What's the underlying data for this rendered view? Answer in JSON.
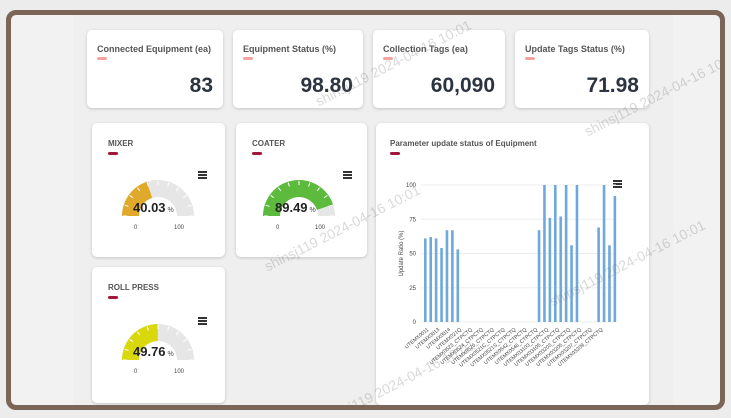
{
  "kpis": [
    {
      "title": "Connected Equipment (ea)",
      "value": "83"
    },
    {
      "title": "Equipment Status (%)",
      "value": "98.80"
    },
    {
      "title": "Collection Tags (ea)",
      "value": "60,090"
    },
    {
      "title": "Update Tags Status (%)",
      "value": "71.98"
    }
  ],
  "gauges": [
    {
      "title": "MIXER",
      "value": 40.03,
      "value_text": "40.03",
      "unit": "%",
      "min": "0",
      "max": "100",
      "color": "#e0a92a"
    },
    {
      "title": "COATER",
      "value": 89.49,
      "value_text": "89.49",
      "unit": "%",
      "min": "0",
      "max": "100",
      "color": "#5cba3c"
    },
    {
      "title": "ROLL PRESS",
      "value": 49.76,
      "value_text": "49.76",
      "unit": "%",
      "min": "0",
      "max": "100",
      "color": "#d8d80c"
    }
  ],
  "watermark": "shinsj119 2024-04-16 10:01",
  "icons": {
    "menu": "hamburger-menu-icon"
  },
  "colors": {
    "track": "#e6e6e6",
    "bar": "#6fa8dc",
    "accent": "#a3153a",
    "kpi_accent": "#f4a5a0"
  },
  "chart_data": {
    "type": "bar",
    "title": "Parameter update status of Equipment",
    "ylabel": "Update Ratio (%)",
    "xlabel": "",
    "ylim": [
      0,
      100
    ],
    "yticks": [
      "0",
      "25",
      "50",
      "75",
      "100"
    ],
    "grid": true,
    "legend": "none",
    "visible_xlabels": [
      "UTEMX0011",
      "UTEMX0013",
      "UTEMX0014",
      "UTEMX021Q",
      "UTEMX0523_CTPCTQ",
      "UTEMX0524_CTPCTQ",
      "UTEMX0526_CTPCTQ",
      "UTEMX0521C_CTPCTQ",
      "UTEMX0521S_CTPCTQ",
      "UTEMX0542_CTPCTQ",
      "UTEMX0546_CTPCTQ",
      "UTEMX03103_CTPCTQ",
      "UTEMX03105_CTPCTQ",
      "UTEMX03203_CTPCTQ",
      "UTEMX03205_CTPCTQ",
      "UTEMX03207_CTPCTQ",
      "UTEMX03209_CTPCTQ"
    ],
    "values": [
      61,
      62,
      61,
      54,
      67,
      67,
      53,
      0,
      0,
      0,
      0,
      0,
      0,
      0,
      0,
      0,
      0,
      0,
      0,
      0,
      0,
      67,
      100,
      76,
      100,
      77,
      100,
      56,
      100,
      0,
      0,
      0,
      69,
      100,
      56,
      92
    ]
  }
}
